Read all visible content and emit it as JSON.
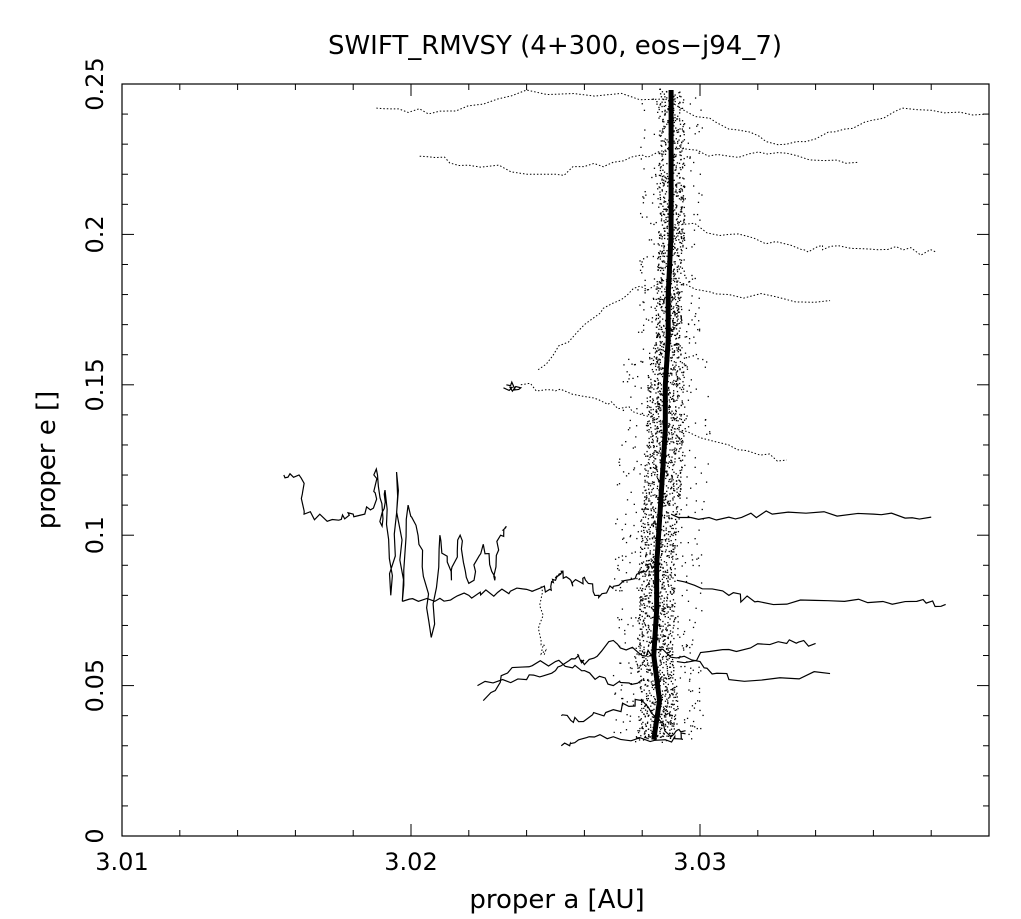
{
  "chart_data": {
    "type": "scatter",
    "title": "SWIFT_RMVSY (4+300, eos−j94_7)",
    "xlabel": "proper a [AU]",
    "ylabel": "proper e []",
    "xlim": [
      3.01,
      3.04
    ],
    "ylim": [
      0,
      0.25
    ],
    "x_ticks": [
      3.01,
      3.02,
      3.03
    ],
    "x_tick_labels": [
      "3.01",
      "3.02",
      "3.03"
    ],
    "y_ticks": [
      0,
      0.05,
      0.1,
      0.15,
      0.2,
      0.25
    ],
    "y_tick_labels": [
      "0",
      "0.05",
      "0.1",
      "0.15",
      "0.2",
      "0.25"
    ],
    "x_minor_step": 0.002,
    "y_minor_step": 0.01,
    "grid": false,
    "legend": "none",
    "mark_color": "#000000",
    "series": [
      {
        "style": "dense-cloud",
        "points": [
          [
            3.0284,
            0.032
          ],
          [
            3.0286,
            0.045
          ],
          [
            3.0284,
            0.06
          ],
          [
            3.0285,
            0.075
          ],
          [
            3.0285,
            0.09
          ],
          [
            3.0286,
            0.105
          ],
          [
            3.0287,
            0.12
          ],
          [
            3.0288,
            0.135
          ],
          [
            3.0288,
            0.15
          ],
          [
            3.0289,
            0.165
          ],
          [
            3.0289,
            0.18
          ],
          [
            3.029,
            0.2
          ],
          [
            3.029,
            0.22
          ],
          [
            3.029,
            0.248
          ]
        ]
      },
      {
        "style": "line",
        "points": [
          [
            3.0156,
            0.12
          ],
          [
            3.0162,
            0.119
          ],
          [
            3.0163,
            0.107
          ],
          [
            3.0175,
            0.105
          ],
          [
            3.018,
            0.107
          ],
          [
            3.0187,
            0.109
          ],
          [
            3.0188,
            0.122
          ],
          [
            3.019,
            0.103
          ],
          [
            3.0191,
            0.115
          ],
          [
            3.0193,
            0.08
          ],
          [
            3.0195,
            0.121
          ],
          [
            3.0197,
            0.078
          ],
          [
            3.0199,
            0.11
          ],
          [
            3.0204,
            0.095
          ],
          [
            3.0207,
            0.066
          ],
          [
            3.021,
            0.1
          ],
          [
            3.0214,
            0.085
          ],
          [
            3.0217,
            0.1
          ],
          [
            3.022,
            0.084
          ],
          [
            3.0225,
            0.097
          ],
          [
            3.0229,
            0.085
          ],
          [
            3.0231,
            0.1
          ],
          [
            3.0233,
            0.103
          ]
        ]
      },
      {
        "style": "line",
        "points": [
          [
            3.0197,
            0.078
          ],
          [
            3.021,
            0.079
          ],
          [
            3.022,
            0.08
          ],
          [
            3.023,
            0.081
          ],
          [
            3.024,
            0.082
          ],
          [
            3.0248,
            0.082
          ],
          [
            3.025,
            0.085
          ],
          [
            3.0252,
            0.088
          ],
          [
            3.0256,
            0.083
          ],
          [
            3.026,
            0.086
          ],
          [
            3.0265,
            0.08
          ],
          [
            3.027,
            0.083
          ],
          [
            3.028,
            0.088
          ],
          [
            3.0285,
            0.09
          ]
        ]
      },
      {
        "style": "line",
        "points": [
          [
            3.0223,
            0.05
          ],
          [
            3.024,
            0.052
          ],
          [
            3.025,
            0.055
          ],
          [
            3.0258,
            0.06
          ],
          [
            3.026,
            0.057
          ],
          [
            3.027,
            0.065
          ],
          [
            3.028,
            0.06
          ],
          [
            3.0285,
            0.062
          ],
          [
            3.03,
            0.058
          ],
          [
            3.031,
            0.052
          ],
          [
            3.0345,
            0.054
          ]
        ]
      },
      {
        "style": "line",
        "points": [
          [
            3.0225,
            0.045
          ],
          [
            3.0235,
            0.056
          ],
          [
            3.025,
            0.058
          ],
          [
            3.026,
            0.055
          ],
          [
            3.027,
            0.05
          ],
          [
            3.028,
            0.052
          ]
        ]
      },
      {
        "style": "line",
        "points": [
          [
            3.0252,
            0.04
          ],
          [
            3.0258,
            0.038
          ],
          [
            3.027,
            0.042
          ],
          [
            3.028,
            0.045
          ],
          [
            3.029,
            0.033
          ],
          [
            3.0295,
            0.035
          ]
        ]
      },
      {
        "style": "line",
        "points": [
          [
            3.0292,
            0.058
          ],
          [
            3.031,
            0.062
          ],
          [
            3.033,
            0.064
          ],
          [
            3.034,
            0.064
          ]
        ]
      },
      {
        "style": "line",
        "points": [
          [
            3.0292,
            0.085
          ],
          [
            3.031,
            0.08
          ],
          [
            3.032,
            0.078
          ],
          [
            3.035,
            0.078
          ],
          [
            3.0375,
            0.078
          ],
          [
            3.0385,
            0.077
          ]
        ]
      },
      {
        "style": "line",
        "points": [
          [
            3.029,
            0.107
          ],
          [
            3.031,
            0.106
          ],
          [
            3.0325,
            0.107
          ],
          [
            3.036,
            0.107
          ],
          [
            3.038,
            0.106
          ]
        ]
      },
      {
        "style": "dotted",
        "points": [
          [
            3.0244,
            0.155
          ],
          [
            3.026,
            0.17
          ],
          [
            3.0275,
            0.18
          ],
          [
            3.0288,
            0.185
          ],
          [
            3.031,
            0.18
          ],
          [
            3.0345,
            0.178
          ]
        ]
      },
      {
        "style": "dotted",
        "points": [
          [
            3.0203,
            0.226
          ],
          [
            3.022,
            0.223
          ],
          [
            3.025,
            0.22
          ],
          [
            3.027,
            0.224
          ],
          [
            3.0288,
            0.228
          ],
          [
            3.031,
            0.226
          ],
          [
            3.033,
            0.227
          ],
          [
            3.0355,
            0.224
          ]
        ]
      },
      {
        "style": "dotted",
        "points": [
          [
            3.0188,
            0.242
          ],
          [
            3.021,
            0.241
          ],
          [
            3.024,
            0.248
          ],
          [
            3.0288,
            0.245
          ],
          [
            3.031,
            0.235
          ],
          [
            3.033,
            0.23
          ],
          [
            3.035,
            0.235
          ],
          [
            3.037,
            0.242
          ],
          [
            3.0399,
            0.24
          ]
        ]
      },
      {
        "style": "dotted",
        "points": [
          [
            3.0288,
            0.205
          ],
          [
            3.031,
            0.2
          ],
          [
            3.0335,
            0.195
          ],
          [
            3.0345,
            0.196
          ],
          [
            3.0365,
            0.195
          ],
          [
            3.0382,
            0.194
          ]
        ]
      },
      {
        "style": "dotted",
        "points": [
          [
            3.0238,
            0.15
          ],
          [
            3.025,
            0.148
          ],
          [
            3.0265,
            0.145
          ],
          [
            3.028,
            0.14
          ],
          [
            3.031,
            0.13
          ],
          [
            3.033,
            0.125
          ]
        ]
      },
      {
        "style": "line",
        "points": [
          [
            3.0233,
            0.15
          ],
          [
            3.0238,
            0.149
          ],
          [
            3.0232,
            0.149
          ]
        ]
      },
      {
        "style": "dotted",
        "points": [
          [
            3.0245,
            0.083
          ],
          [
            3.0245,
            0.065
          ],
          [
            3.0246,
            0.06
          ]
        ]
      },
      {
        "style": "line",
        "points": [
          [
            3.0252,
            0.03
          ],
          [
            3.0258,
            0.032
          ],
          [
            3.027,
            0.033
          ],
          [
            3.0288,
            0.032
          ],
          [
            3.0295,
            0.034
          ]
        ]
      }
    ]
  }
}
